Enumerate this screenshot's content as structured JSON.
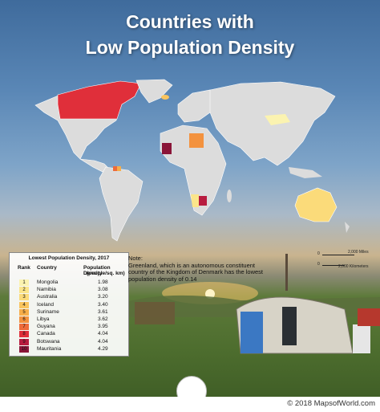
{
  "title_line1": "Countries with",
  "title_line2": "Low Population Density",
  "legend": {
    "title": "Lowest Population Density, 2017",
    "col_rank": "Rank",
    "col_country": "Country",
    "col_density": "Population Density",
    "col_density_unit": "(people/sq. km)",
    "rows": [
      {
        "rank": "1",
        "country": "Mongolia",
        "value": "1.98",
        "color": "#fbf3b0"
      },
      {
        "rank": "2",
        "country": "Namibia",
        "value": "3.08",
        "color": "#fbe58a"
      },
      {
        "rank": "3",
        "country": "Australia",
        "value": "3.20",
        "color": "#fbdb7a"
      },
      {
        "rank": "4",
        "country": "Iceland",
        "value": "3.40",
        "color": "#f9c45e"
      },
      {
        "rank": "5",
        "country": "Suriname",
        "value": "3.61",
        "color": "#f7ae4a"
      },
      {
        "rank": "6",
        "country": "Libya",
        "value": "3.62",
        "color": "#f3923e"
      },
      {
        "rank": "7",
        "country": "Guyana",
        "value": "3.95",
        "color": "#ee6b3a"
      },
      {
        "rank": "8",
        "country": "Canada",
        "value": "4.04",
        "color": "#e02f3a"
      },
      {
        "rank": "9",
        "country": "Botswana",
        "value": "4.04",
        "color": "#b81c3f"
      },
      {
        "rank": "10",
        "country": "Mauritania",
        "value": "4.29",
        "color": "#8a1538"
      }
    ]
  },
  "note": {
    "heading": "Note:",
    "text": "Greenland, which is an autonomous constituent country of the Kingdom of Denmark has the lowest population density of 0.14"
  },
  "scale": {
    "miles": "2,000 Miles",
    "km": "2,000 Kilometers",
    "zero": "0"
  },
  "copyright": "© 2018 MapsofWorld.com",
  "colors": {
    "land": "#dcdcdc",
    "border": "#ffffff"
  }
}
